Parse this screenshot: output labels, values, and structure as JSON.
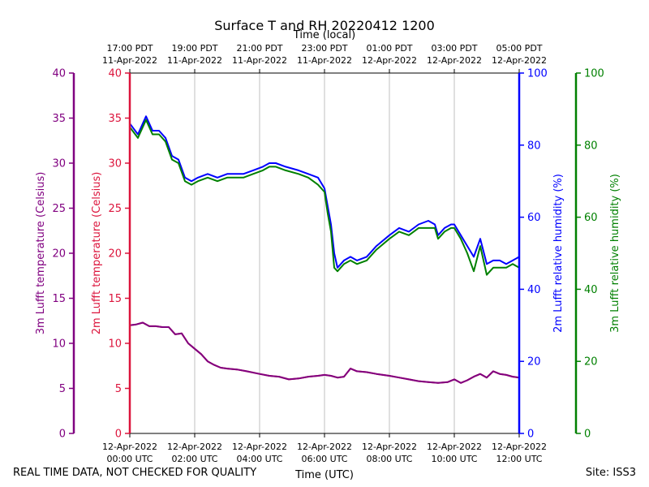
{
  "chart_data": {
    "type": "line",
    "title": "Surface T and RH 20220412 1200",
    "top_axis_title": "Time (local)",
    "top_ticks": [
      {
        "line1": "17:00 PDT",
        "line2": "11-Apr-2022"
      },
      {
        "line1": "19:00 PDT",
        "line2": "11-Apr-2022"
      },
      {
        "line1": "21:00 PDT",
        "line2": "11-Apr-2022"
      },
      {
        "line1": "23:00 PDT",
        "line2": "11-Apr-2022"
      },
      {
        "line1": "01:00 PDT",
        "line2": "12-Apr-2022"
      },
      {
        "line1": "03:00 PDT",
        "line2": "12-Apr-2022"
      },
      {
        "line1": "05:00 PDT",
        "line2": "12-Apr-2022"
      }
    ],
    "bottom_axis_title": "Time (UTC)",
    "bottom_ticks": [
      {
        "line1": "12-Apr-2022",
        "line2": "00:00 UTC"
      },
      {
        "line1": "12-Apr-2022",
        "line2": "02:00 UTC"
      },
      {
        "line1": "12-Apr-2022",
        "line2": "04:00 UTC"
      },
      {
        "line1": "12-Apr-2022",
        "line2": "06:00 UTC"
      },
      {
        "line1": "12-Apr-2022",
        "line2": "08:00 UTC"
      },
      {
        "line1": "12-Apr-2022",
        "line2": "10:00 UTC"
      },
      {
        "line1": "12-Apr-2022",
        "line2": "12:00 UTC"
      }
    ],
    "x_hours_range": [
      0,
      12
    ],
    "axes": {
      "t3m": {
        "label": "3m Lufft temperature (Celsius)",
        "color": "#800080",
        "range": [
          0,
          40
        ],
        "ticks": [
          0,
          5,
          10,
          15,
          20,
          25,
          30,
          35,
          40
        ]
      },
      "t2m": {
        "label": "2m Lufft temperature (Celsius)",
        "color": "#dc143c",
        "range": [
          0,
          40
        ],
        "ticks": [
          0,
          5,
          10,
          15,
          20,
          25,
          30,
          35,
          40
        ]
      },
      "rh2m": {
        "label": "2m Lufft relative humidity (%)",
        "color": "#0000ff",
        "range": [
          0,
          100
        ],
        "ticks": [
          0,
          20,
          40,
          60,
          80,
          100
        ]
      },
      "rh3m": {
        "label": "3m Lufft relative humidity (%)",
        "color": "#008000",
        "range": [
          0,
          100
        ],
        "ticks": [
          0,
          20,
          40,
          60,
          80,
          100
        ]
      }
    },
    "series": [
      {
        "name": "2m Lufft relative humidity",
        "axis": "rh2m",
        "color": "#0000ff",
        "x": [
          0,
          0.25,
          0.5,
          0.7,
          0.9,
          1.1,
          1.3,
          1.5,
          1.7,
          1.9,
          2.1,
          2.4,
          2.7,
          3.0,
          3.5,
          3.8,
          4.1,
          4.3,
          4.5,
          4.8,
          5.2,
          5.5,
          5.8,
          6.0,
          6.1,
          6.2,
          6.3,
          6.4,
          6.6,
          6.8,
          7.0,
          7.3,
          7.6,
          8.0,
          8.3,
          8.6,
          8.9,
          9.2,
          9.4,
          9.5,
          9.7,
          9.9,
          10.0,
          10.2,
          10.4,
          10.6,
          10.8,
          11.0,
          11.2,
          11.4,
          11.6,
          11.8,
          12.0
        ],
        "y": [
          86,
          83,
          88,
          84,
          84,
          82,
          77,
          76,
          71,
          70,
          71,
          72,
          71,
          72,
          72,
          73,
          74,
          75,
          75,
          74,
          73,
          72,
          71,
          68,
          63,
          58,
          50,
          46,
          48,
          49,
          48,
          49,
          52,
          55,
          57,
          56,
          58,
          59,
          58,
          55,
          57,
          58,
          58,
          55,
          52,
          49,
          54,
          47,
          48,
          48,
          47,
          48,
          49
        ]
      },
      {
        "name": "3m Lufft relative humidity",
        "axis": "rh3m",
        "color": "#008000",
        "x": [
          0,
          0.25,
          0.5,
          0.7,
          0.9,
          1.1,
          1.3,
          1.5,
          1.7,
          1.9,
          2.1,
          2.4,
          2.7,
          3.0,
          3.5,
          3.8,
          4.1,
          4.3,
          4.5,
          4.8,
          5.2,
          5.5,
          5.8,
          6.0,
          6.1,
          6.2,
          6.3,
          6.4,
          6.6,
          6.8,
          7.0,
          7.3,
          7.6,
          8.0,
          8.3,
          8.6,
          8.9,
          9.2,
          9.4,
          9.5,
          9.7,
          9.9,
          10.0,
          10.2,
          10.4,
          10.6,
          10.8,
          11.0,
          11.2,
          11.4,
          11.6,
          11.8,
          12.0
        ],
        "y": [
          85,
          82,
          87,
          83,
          83,
          81,
          76,
          75,
          70,
          69,
          70,
          71,
          70,
          71,
          71,
          72,
          73,
          74,
          74,
          73,
          72,
          71,
          69,
          67,
          61,
          56,
          46,
          45,
          47,
          48,
          47,
          48,
          51,
          54,
          56,
          55,
          57,
          57,
          57,
          54,
          56,
          57,
          57,
          54,
          50,
          45,
          52,
          44,
          46,
          46,
          46,
          47,
          46
        ]
      },
      {
        "name": "2m Lufft temperature",
        "axis": "t2m",
        "color": "#dc143c",
        "x": [
          0,
          0.2,
          0.4,
          0.6,
          0.8,
          1.0,
          1.2,
          1.4,
          1.6,
          1.8,
          2.0,
          2.2,
          2.4,
          2.6,
          2.8,
          3.0,
          3.3,
          3.6,
          4.0,
          4.3,
          4.6,
          4.9,
          5.2,
          5.5,
          5.8,
          6.0,
          6.2,
          6.4,
          6.6,
          6.8,
          7.0,
          7.3,
          7.6,
          8.0,
          8.3,
          8.6,
          8.9,
          9.2,
          9.5,
          9.8,
          10.0,
          10.2,
          10.4,
          10.6,
          10.8,
          11.0,
          11.2,
          11.4,
          11.6,
          11.8,
          12.0
        ],
        "y": [
          12,
          12.1,
          12.3,
          11.9,
          11.9,
          11.8,
          11.8,
          11.0,
          11.1,
          10.0,
          9.4,
          8.8,
          8.0,
          7.6,
          7.3,
          7.2,
          7.1,
          6.9,
          6.6,
          6.4,
          6.3,
          6.0,
          6.1,
          6.3,
          6.4,
          6.5,
          6.4,
          6.2,
          6.3,
          7.2,
          6.9,
          6.8,
          6.6,
          6.4,
          6.2,
          6.0,
          5.8,
          5.7,
          5.6,
          5.7,
          6.0,
          5.6,
          5.9,
          6.3,
          6.6,
          6.2,
          6.9,
          6.6,
          6.5,
          6.3,
          6.2
        ]
      },
      {
        "name": "3m Lufft temperature",
        "axis": "t3m",
        "color": "#800080",
        "x": [
          0,
          0.2,
          0.4,
          0.6,
          0.8,
          1.0,
          1.2,
          1.4,
          1.6,
          1.8,
          2.0,
          2.2,
          2.4,
          2.6,
          2.8,
          3.0,
          3.3,
          3.6,
          4.0,
          4.3,
          4.6,
          4.9,
          5.2,
          5.5,
          5.8,
          6.0,
          6.2,
          6.4,
          6.6,
          6.8,
          7.0,
          7.3,
          7.6,
          8.0,
          8.3,
          8.6,
          8.9,
          9.2,
          9.5,
          9.8,
          10.0,
          10.2,
          10.4,
          10.6,
          10.8,
          11.0,
          11.2,
          11.4,
          11.6,
          11.8,
          12.0
        ],
        "y": [
          12,
          12.1,
          12.3,
          11.9,
          11.9,
          11.8,
          11.8,
          11.0,
          11.1,
          10.0,
          9.4,
          8.8,
          8.0,
          7.6,
          7.3,
          7.2,
          7.1,
          6.9,
          6.6,
          6.4,
          6.3,
          6.0,
          6.1,
          6.3,
          6.4,
          6.5,
          6.4,
          6.2,
          6.3,
          7.2,
          6.9,
          6.8,
          6.6,
          6.4,
          6.2,
          6.0,
          5.8,
          5.7,
          5.6,
          5.7,
          6.0,
          5.6,
          5.9,
          6.3,
          6.6,
          6.2,
          6.9,
          6.6,
          6.5,
          6.3,
          6.2
        ]
      }
    ],
    "grid": "vertical"
  },
  "footer": {
    "left": "REAL TIME DATA, NOT CHECKED FOR QUALITY",
    "right": "Site: ISS3"
  }
}
